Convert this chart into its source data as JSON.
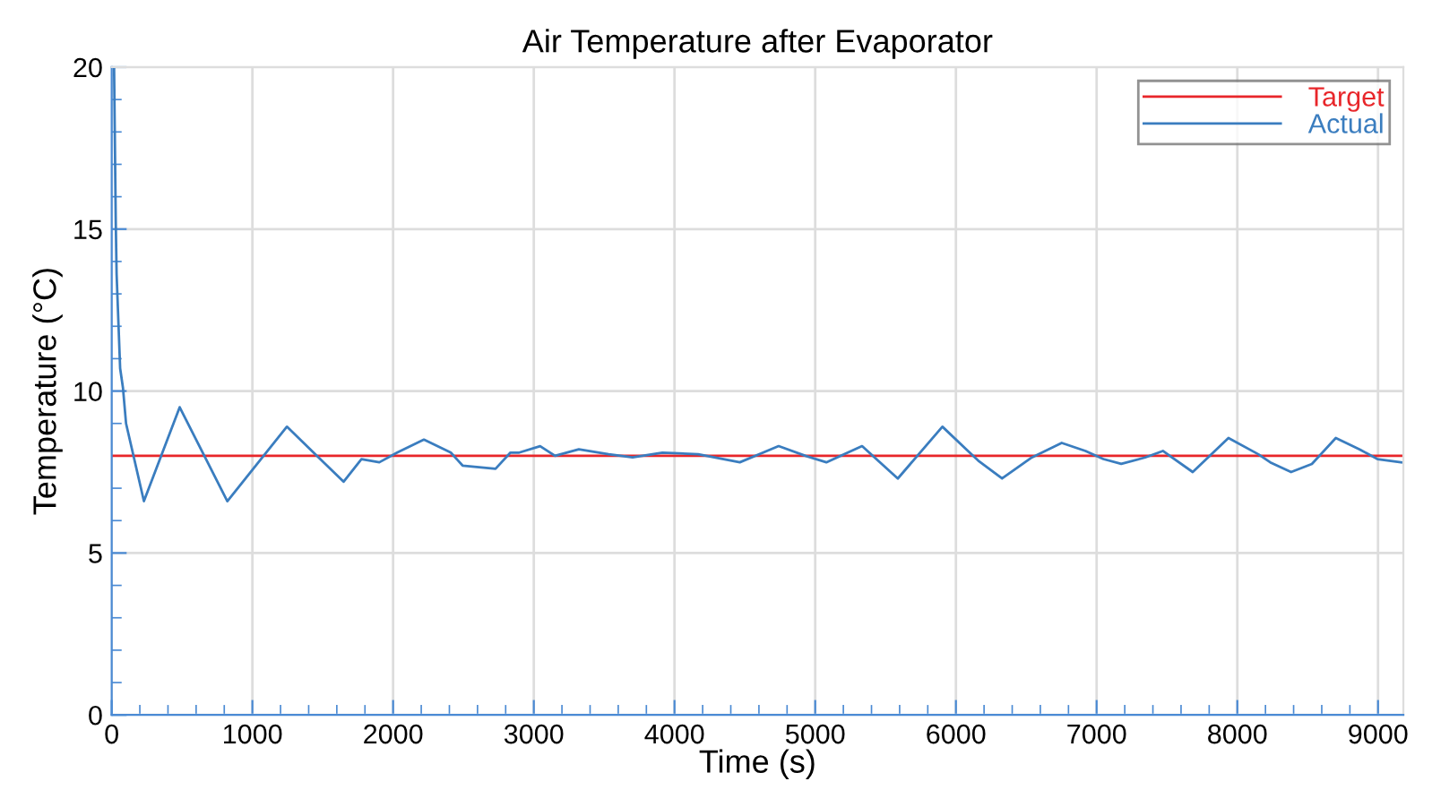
{
  "chart_data": {
    "type": "line",
    "title": "Air Temperature after Evaporator",
    "xlabel": "Time (s)",
    "ylabel": "Temperature (°C)",
    "xlim": [
      0,
      9180
    ],
    "ylim": [
      0,
      20
    ],
    "xticks": [
      0,
      1000,
      2000,
      3000,
      4000,
      5000,
      6000,
      7000,
      8000,
      9000
    ],
    "yticks": [
      0,
      5,
      10,
      15,
      20
    ],
    "grid": true,
    "legend": "top right",
    "line_style": "solid",
    "marker": "none",
    "series": [
      {
        "name": "Target",
        "color": "#e8262a",
        "x": [
          0,
          9165
        ],
        "values": [
          8,
          8
        ]
      },
      {
        "name": "Actual",
        "color": "#3a7dbf",
        "x": [
          17,
          29,
          35,
          60,
          80,
          102,
          229,
          483,
          822,
          1245,
          1648,
          1775,
          1902,
          2029,
          2219,
          2410,
          2494,
          2728,
          2834,
          2897,
          3045,
          3151,
          3320,
          3532,
          3702,
          3914,
          4168,
          4464,
          4740,
          4930,
          5079,
          5333,
          5587,
          5904,
          6074,
          6159,
          6328,
          6540,
          6752,
          6921,
          7048,
          7175,
          7345,
          7471,
          7683,
          7937,
          8149,
          8234,
          8382,
          8530,
          8700,
          8869,
          8996,
          9165
        ],
        "values": [
          20,
          15.2,
          13.6,
          10.7,
          10.1,
          9.0,
          6.6,
          9.5,
          6.6,
          8.9,
          7.2,
          7.9,
          7.8,
          8.1,
          8.5,
          8.1,
          7.7,
          7.6,
          8.1,
          8.1,
          8.3,
          8.0,
          8.2,
          8.05,
          7.95,
          8.1,
          8.05,
          7.8,
          8.3,
          8.0,
          7.8,
          8.3,
          7.3,
          8.9,
          8.2,
          7.85,
          7.3,
          7.95,
          8.4,
          8.15,
          7.9,
          7.75,
          7.95,
          8.15,
          7.5,
          8.55,
          8.05,
          7.8,
          7.5,
          7.75,
          8.55,
          8.2,
          7.9,
          7.8
        ]
      }
    ]
  }
}
